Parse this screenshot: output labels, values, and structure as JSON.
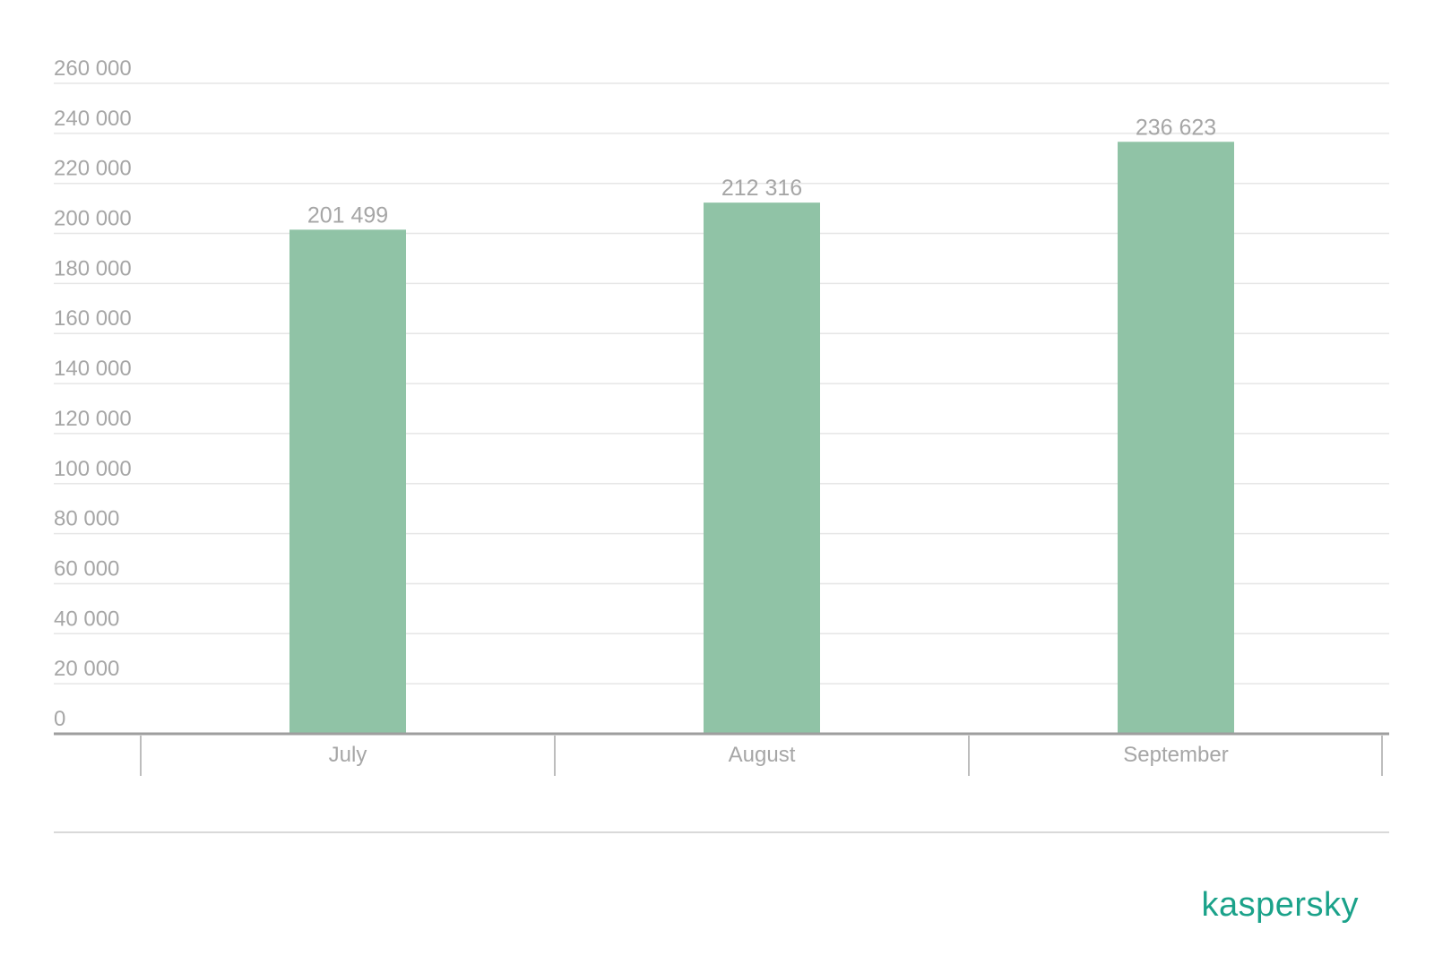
{
  "brand": {
    "logo_text": "kaspersky",
    "logo_color": "#1ba28a"
  },
  "colors": {
    "bar": "#90c3a6",
    "text": "#a6a6a6",
    "grid": "#e6e6e6",
    "axis": "#9e9e9e"
  },
  "chart_data": {
    "type": "bar",
    "categories": [
      "July",
      "August",
      "September"
    ],
    "values": [
      201499,
      212316,
      236623
    ],
    "data_labels": [
      "201 499",
      "212 316",
      "236 623"
    ],
    "y_ticks": [
      0,
      20000,
      40000,
      60000,
      80000,
      100000,
      120000,
      140000,
      160000,
      180000,
      200000,
      220000,
      240000,
      260000
    ],
    "y_tick_labels": [
      "0",
      "20 000",
      "40 000",
      "60 000",
      "80 000",
      "100 000",
      "120 000",
      "140 000",
      "160 000",
      "180 000",
      "200 000",
      "220 000",
      "240 000",
      "260 000"
    ],
    "ylim": [
      0,
      260000
    ],
    "title": "",
    "xlabel": "",
    "ylabel": "",
    "grid": true,
    "legend": "none"
  }
}
